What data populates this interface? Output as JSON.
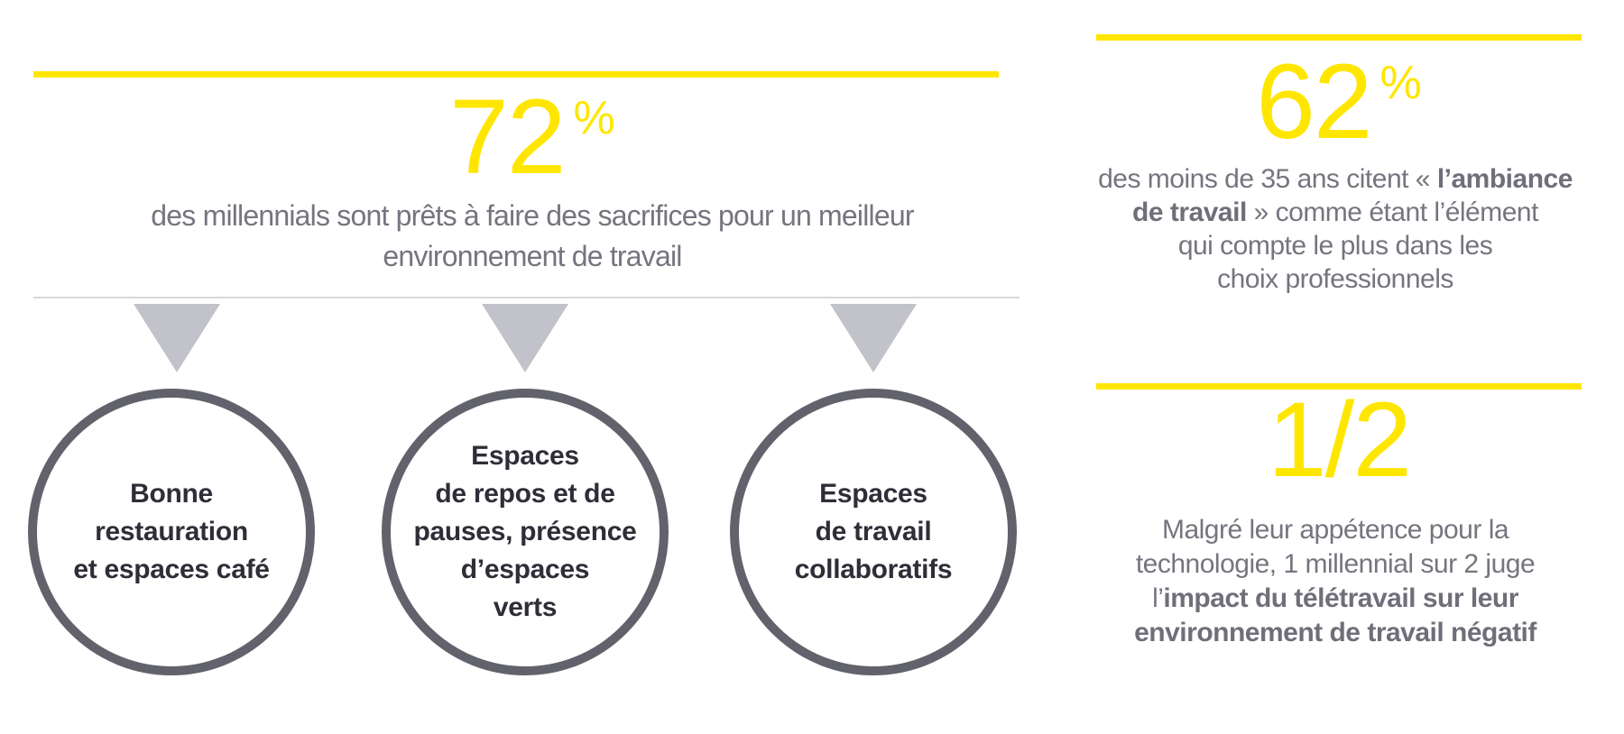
{
  "colors": {
    "accent_yellow": "#FFE600",
    "text_gray": "#75757F",
    "text_dark": "#2E2E38",
    "circle_border": "#62626C",
    "triangle_gray": "#C1C2CA",
    "divider_gray": "#D9D9DC"
  },
  "left_panel": {
    "stat": {
      "value": "72",
      "unit": "%"
    },
    "description_lines": [
      [
        {
          "t": "des millennials sont prêts à faire des sacrifices pour un meilleur",
          "b": false
        }
      ],
      [
        {
          "t": "environnement de travail",
          "b": false
        }
      ]
    ],
    "circles": [
      {
        "label_lines": [
          "Bonne",
          "restauration",
          "et espaces café"
        ]
      },
      {
        "label_lines": [
          "Espaces",
          "de repos et de",
          "pauses, présence",
          "d’espaces",
          "verts"
        ]
      },
      {
        "label_lines": [
          "Espaces",
          "de travail",
          "collaboratifs"
        ]
      }
    ]
  },
  "right_panel": {
    "stat_top": {
      "value": "62",
      "unit": "%",
      "description_lines": [
        [
          {
            "t": "des moins de 35 ans citent « ",
            "b": false
          },
          {
            "t": "l’ambiance",
            "b": true
          }
        ],
        [
          {
            "t": "de travail",
            "b": true
          },
          {
            "t": " » comme étant l’élément",
            "b": false
          }
        ],
        [
          {
            "t": "qui compte le plus dans les",
            "b": false
          }
        ],
        [
          {
            "t": "choix professionnels",
            "b": false
          }
        ]
      ]
    },
    "stat_bottom": {
      "value": "1/2",
      "description_lines": [
        [
          {
            "t": "Malgré leur appétence pour la",
            "b": false
          }
        ],
        [
          {
            "t": "technologie, 1 millennial sur 2 juge",
            "b": false
          }
        ],
        [
          {
            "t": "l’",
            "b": false
          },
          {
            "t": "impact du télétravail sur leur",
            "b": true
          }
        ],
        [
          {
            "t": "environnement de travail négatif",
            "b": true
          }
        ]
      ]
    }
  }
}
